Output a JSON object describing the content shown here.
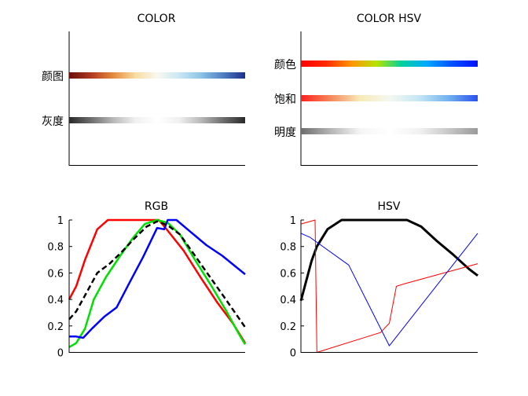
{
  "chart_data": [
    {
      "type": "gradient",
      "title": "COLOR",
      "rows": [
        {
          "label": "颜图",
          "colors": [
            "#6a0d0d",
            "#b03a1f",
            "#e58a3c",
            "#f7dca0",
            "#f8f8ee",
            "#c9e8f3",
            "#8cc3e6",
            "#4f7fc3",
            "#1f2e8a"
          ]
        },
        {
          "label": "灰度",
          "colors": [
            "#2a2a2a",
            "#6e6e6e",
            "#b8b8b8",
            "#f0f0f0",
            "#ffffff",
            "#f0f0f0",
            "#b8b8b8",
            "#6e6e6e",
            "#2a2a2a"
          ]
        }
      ]
    },
    {
      "type": "gradient",
      "title": "COLOR HSV",
      "rows": [
        {
          "label": "颜色",
          "colors": [
            "#ff0000",
            "#ff2a00",
            "#ff9500",
            "#b5e400",
            "#00d0a0",
            "#00a8ff",
            "#0050ff",
            "#0010ff"
          ]
        },
        {
          "label": "饱和",
          "colors": [
            "#ff2020",
            "#f5875a",
            "#f8e9b8",
            "#f5f8f0",
            "#c5e6f5",
            "#73b3ef",
            "#2a4ff0"
          ]
        },
        {
          "label": "明度",
          "colors": [
            "#6e6e6e",
            "#b4b4b4",
            "#f5f5f5",
            "#ffffff",
            "#f2f2f2",
            "#c8c8c8",
            "#9a9a9a"
          ]
        }
      ]
    },
    {
      "type": "line",
      "title": "RGB",
      "yticks": [
        "0",
        "0.2",
        "0.4",
        "0.6",
        "0.8",
        "1"
      ],
      "ylim": [
        0,
        1
      ],
      "xlim": [
        0,
        1
      ],
      "series": [
        {
          "color": "#ff0000",
          "width": 2.5,
          "dash": "",
          "points": [
            [
              0,
              0.4
            ],
            [
              0.04,
              0.5
            ],
            [
              0.09,
              0.7
            ],
            [
              0.16,
              0.93
            ],
            [
              0.22,
              1.0
            ],
            [
              0.51,
              1.0
            ],
            [
              0.56,
              0.92
            ],
            [
              0.65,
              0.77
            ],
            [
              0.75,
              0.56
            ],
            [
              0.84,
              0.38
            ],
            [
              0.93,
              0.22
            ],
            [
              1.0,
              0.07
            ]
          ]
        },
        {
          "color": "#00e000",
          "width": 2.5,
          "dash": "",
          "points": [
            [
              0,
              0.04
            ],
            [
              0.04,
              0.07
            ],
            [
              0.09,
              0.18
            ],
            [
              0.14,
              0.4
            ],
            [
              0.21,
              0.57
            ],
            [
              0.29,
              0.73
            ],
            [
              0.36,
              0.86
            ],
            [
              0.43,
              0.97
            ],
            [
              0.5,
              1.0
            ],
            [
              0.56,
              0.98
            ],
            [
              0.63,
              0.89
            ],
            [
              0.71,
              0.71
            ],
            [
              0.8,
              0.52
            ],
            [
              0.89,
              0.32
            ],
            [
              0.96,
              0.15
            ],
            [
              1.0,
              0.06
            ]
          ]
        },
        {
          "color": "#0000ff",
          "width": 2.5,
          "dash": "",
          "points": [
            [
              0,
              0.12
            ],
            [
              0.04,
              0.12
            ],
            [
              0.08,
              0.11
            ],
            [
              0.13,
              0.18
            ],
            [
              0.2,
              0.27
            ],
            [
              0.27,
              0.34
            ],
            [
              0.34,
              0.52
            ],
            [
              0.42,
              0.72
            ],
            [
              0.5,
              0.94
            ],
            [
              0.54,
              0.93
            ],
            [
              0.56,
              1.0
            ],
            [
              0.61,
              1.0
            ],
            [
              0.69,
              0.91
            ],
            [
              0.78,
              0.81
            ],
            [
              0.87,
              0.73
            ],
            [
              1.0,
              0.59
            ]
          ]
        },
        {
          "color": "#000000",
          "width": 2.5,
          "dash": "7,4",
          "points": [
            [
              0,
              0.25
            ],
            [
              0.04,
              0.31
            ],
            [
              0.09,
              0.43
            ],
            [
              0.16,
              0.6
            ],
            [
              0.23,
              0.67
            ],
            [
              0.3,
              0.76
            ],
            [
              0.37,
              0.86
            ],
            [
              0.44,
              0.95
            ],
            [
              0.5,
              0.99
            ],
            [
              0.56,
              0.96
            ],
            [
              0.63,
              0.89
            ],
            [
              0.71,
              0.74
            ],
            [
              0.8,
              0.57
            ],
            [
              0.89,
              0.4
            ],
            [
              1.0,
              0.19
            ]
          ]
        }
      ]
    },
    {
      "type": "line",
      "title": "HSV",
      "yticks": [
        "0",
        "0.2",
        "0.4",
        "0.6",
        "0.8",
        "1"
      ],
      "ylim": [
        0,
        1
      ],
      "xlim": [
        0,
        1
      ],
      "series": [
        {
          "color": "#000000",
          "width": 3,
          "dash": "",
          "points": [
            [
              0,
              0.39
            ],
            [
              0.06,
              0.69
            ],
            [
              0.09,
              0.8
            ],
            [
              0.15,
              0.93
            ],
            [
              0.23,
              1.0
            ],
            [
              0.6,
              1.0
            ],
            [
              0.68,
              0.95
            ],
            [
              0.77,
              0.84
            ],
            [
              0.86,
              0.74
            ],
            [
              0.95,
              0.63
            ],
            [
              1.0,
              0.58
            ]
          ]
        },
        {
          "color": "#ff0000",
          "width": 1,
          "dash": "",
          "points": [
            [
              0,
              0.97
            ],
            [
              0.08,
              1.0
            ],
            [
              0.09,
              0.0
            ],
            [
              0.45,
              0.15
            ],
            [
              0.5,
              0.22
            ],
            [
              0.54,
              0.5
            ],
            [
              0.59,
              0.52
            ],
            [
              1.0,
              0.67
            ]
          ]
        },
        {
          "color": "#0000ff",
          "width": 1,
          "dash": "",
          "points": [
            [
              0,
              0.9
            ],
            [
              0.05,
              0.87
            ],
            [
              0.27,
              0.66
            ],
            [
              0.5,
              0.05
            ],
            [
              1.0,
              0.9
            ]
          ]
        }
      ]
    }
  ]
}
